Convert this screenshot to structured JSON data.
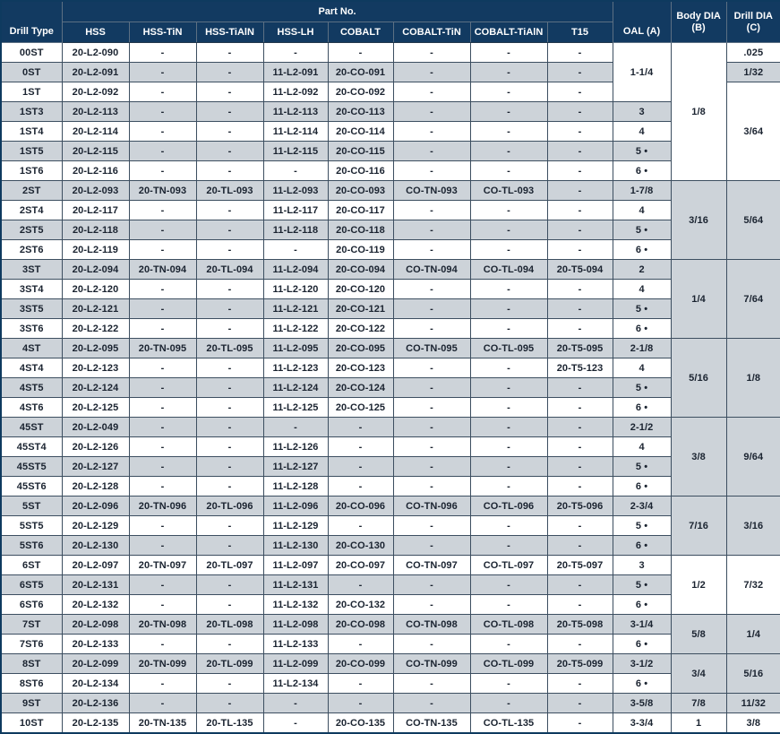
{
  "table": {
    "part_no_label": "Part No.",
    "drill_type_label": "Drill Type",
    "oal_label": "OAL (A)",
    "body_dia_label": "Body DIA (B)",
    "drill_dia_label": "Drill DIA (C)",
    "part_columns": [
      "HSS",
      "HSS-TiN",
      "HSS-TiAlN",
      "HSS-LH",
      "COBALT",
      "COBALT-TiN",
      "COBALT-TiAlN",
      "T15"
    ],
    "rows": [
      {
        "type": "00ST",
        "parts": [
          "20-L2-090",
          "-",
          "-",
          "-",
          "-",
          "-",
          "-",
          "-"
        ],
        "oal": {
          "t": "1-1/4",
          "rs": 3
        },
        "body": {
          "t": "1/8",
          "rs": 7
        },
        "drill": ".025"
      },
      {
        "type": "0ST",
        "parts": [
          "20-L2-091",
          "-",
          "-",
          "11-L2-091",
          "20-CO-091",
          "-",
          "-",
          "-"
        ],
        "oal": null,
        "body": null,
        "drill": "1/32"
      },
      {
        "type": "1ST",
        "parts": [
          "20-L2-092",
          "-",
          "-",
          "11-L2-092",
          "20-CO-092",
          "-",
          "-",
          "-"
        ],
        "oal": null,
        "body": null,
        "drill": {
          "t": "3/64",
          "rs": 5
        }
      },
      {
        "type": "1ST3",
        "parts": [
          "20-L2-113",
          "-",
          "-",
          "11-L2-113",
          "20-CO-113",
          "-",
          "-",
          "-"
        ],
        "oal": "3",
        "body": null,
        "drill": null
      },
      {
        "type": "1ST4",
        "parts": [
          "20-L2-114",
          "-",
          "-",
          "11-L2-114",
          "20-CO-114",
          "-",
          "-",
          "-"
        ],
        "oal": "4",
        "body": null,
        "drill": null
      },
      {
        "type": "1ST5",
        "parts": [
          "20-L2-115",
          "-",
          "-",
          "11-L2-115",
          "20-CO-115",
          "-",
          "-",
          "-"
        ],
        "oal": "5 •",
        "body": null,
        "drill": null
      },
      {
        "type": "1ST6",
        "parts": [
          "20-L2-116",
          "-",
          "-",
          "-",
          "20-CO-116",
          "-",
          "-",
          "-"
        ],
        "oal": "6 •",
        "body": null,
        "drill": null
      },
      {
        "type": "2ST",
        "parts": [
          "20-L2-093",
          "20-TN-093",
          "20-TL-093",
          "11-L2-093",
          "20-CO-093",
          "CO-TN-093",
          "CO-TL-093",
          "-"
        ],
        "oal": "1-7/8",
        "body": {
          "t": "3/16",
          "rs": 4
        },
        "drill": {
          "t": "5/64",
          "rs": 4
        }
      },
      {
        "type": "2ST4",
        "parts": [
          "20-L2-117",
          "-",
          "-",
          "11-L2-117",
          "20-CO-117",
          "-",
          "-",
          "-"
        ],
        "oal": "4",
        "body": null,
        "drill": null
      },
      {
        "type": "2ST5",
        "parts": [
          "20-L2-118",
          "-",
          "-",
          "11-L2-118",
          "20-CO-118",
          "-",
          "-",
          "-"
        ],
        "oal": "5 •",
        "body": null,
        "drill": null
      },
      {
        "type": "2ST6",
        "parts": [
          "20-L2-119",
          "-",
          "-",
          "-",
          "20-CO-119",
          "-",
          "-",
          "-"
        ],
        "oal": "6 •",
        "body": null,
        "drill": null
      },
      {
        "type": "3ST",
        "parts": [
          "20-L2-094",
          "20-TN-094",
          "20-TL-094",
          "11-L2-094",
          "20-CO-094",
          "CO-TN-094",
          "CO-TL-094",
          "20-T5-094"
        ],
        "oal": "2",
        "body": {
          "t": "1/4",
          "rs": 4
        },
        "drill": {
          "t": "7/64",
          "rs": 4
        }
      },
      {
        "type": "3ST4",
        "parts": [
          "20-L2-120",
          "-",
          "-",
          "11-L2-120",
          "20-CO-120",
          "-",
          "-",
          "-"
        ],
        "oal": "4",
        "body": null,
        "drill": null
      },
      {
        "type": "3ST5",
        "parts": [
          "20-L2-121",
          "-",
          "-",
          "11-L2-121",
          "20-CO-121",
          "-",
          "-",
          "-"
        ],
        "oal": "5 •",
        "body": null,
        "drill": null
      },
      {
        "type": "3ST6",
        "parts": [
          "20-L2-122",
          "-",
          "-",
          "11-L2-122",
          "20-CO-122",
          "-",
          "-",
          "-"
        ],
        "oal": "6 •",
        "body": null,
        "drill": null
      },
      {
        "type": "4ST",
        "parts": [
          "20-L2-095",
          "20-TN-095",
          "20-TL-095",
          "11-L2-095",
          "20-CO-095",
          "CO-TN-095",
          "CO-TL-095",
          "20-T5-095"
        ],
        "oal": "2-1/8",
        "body": {
          "t": "5/16",
          "rs": 4
        },
        "drill": {
          "t": "1/8",
          "rs": 4
        }
      },
      {
        "type": "4ST4",
        "parts": [
          "20-L2-123",
          "-",
          "-",
          "11-L2-123",
          "20-CO-123",
          "-",
          "-",
          "20-T5-123"
        ],
        "oal": "4",
        "body": null,
        "drill": null
      },
      {
        "type": "4ST5",
        "parts": [
          "20-L2-124",
          "-",
          "-",
          "11-L2-124",
          "20-CO-124",
          "-",
          "-",
          "-"
        ],
        "oal": "5 •",
        "body": null,
        "drill": null
      },
      {
        "type": "4ST6",
        "parts": [
          "20-L2-125",
          "-",
          "-",
          "11-L2-125",
          "20-CO-125",
          "-",
          "-",
          "-"
        ],
        "oal": "6 •",
        "body": null,
        "drill": null
      },
      {
        "type": "45ST",
        "parts": [
          "20-L2-049",
          "-",
          "-",
          "-",
          "-",
          "-",
          "-",
          "-"
        ],
        "oal": "2-1/2",
        "body": {
          "t": "3/8",
          "rs": 4
        },
        "drill": {
          "t": "9/64",
          "rs": 4
        }
      },
      {
        "type": "45ST4",
        "parts": [
          "20-L2-126",
          "-",
          "-",
          "11-L2-126",
          "-",
          "-",
          "-",
          "-"
        ],
        "oal": "4",
        "body": null,
        "drill": null
      },
      {
        "type": "45ST5",
        "parts": [
          "20-L2-127",
          "-",
          "-",
          "11-L2-127",
          "-",
          "-",
          "-",
          "-"
        ],
        "oal": "5 •",
        "body": null,
        "drill": null
      },
      {
        "type": "45ST6",
        "parts": [
          "20-L2-128",
          "-",
          "-",
          "11-L2-128",
          "-",
          "-",
          "-",
          "-"
        ],
        "oal": "6 •",
        "body": null,
        "drill": null
      },
      {
        "type": "5ST",
        "parts": [
          "20-L2-096",
          "20-TN-096",
          "20-TL-096",
          "11-L2-096",
          "20-CO-096",
          "CO-TN-096",
          "CO-TL-096",
          "20-T5-096"
        ],
        "oal": "2-3/4",
        "body": {
          "t": "7/16",
          "rs": 3
        },
        "drill": {
          "t": "3/16",
          "rs": 3
        }
      },
      {
        "type": "5ST5",
        "parts": [
          "20-L2-129",
          "-",
          "-",
          "11-L2-129",
          "-",
          "-",
          "-",
          "-"
        ],
        "oal": "5 •",
        "body": null,
        "drill": null
      },
      {
        "type": "5ST6",
        "parts": [
          "20-L2-130",
          "-",
          "-",
          "11-L2-130",
          "20-CO-130",
          "-",
          "-",
          "-"
        ],
        "oal": "6 •",
        "body": null,
        "drill": null
      },
      {
        "type": "6ST",
        "parts": [
          "20-L2-097",
          "20-TN-097",
          "20-TL-097",
          "11-L2-097",
          "20-CO-097",
          "CO-TN-097",
          "CO-TL-097",
          "20-T5-097"
        ],
        "oal": "3",
        "body": {
          "t": "1/2",
          "rs": 3
        },
        "drill": {
          "t": "7/32",
          "rs": 3
        }
      },
      {
        "type": "6ST5",
        "parts": [
          "20-L2-131",
          "-",
          "-",
          "11-L2-131",
          "-",
          "-",
          "-",
          "-"
        ],
        "oal": "5 •",
        "body": null,
        "drill": null
      },
      {
        "type": "6ST6",
        "parts": [
          "20-L2-132",
          "-",
          "-",
          "11-L2-132",
          "20-CO-132",
          "-",
          "-",
          "-"
        ],
        "oal": "6 •",
        "body": null,
        "drill": null
      },
      {
        "type": "7ST",
        "parts": [
          "20-L2-098",
          "20-TN-098",
          "20-TL-098",
          "11-L2-098",
          "20-CO-098",
          "CO-TN-098",
          "CO-TL-098",
          "20-T5-098"
        ],
        "oal": "3-1/4",
        "body": {
          "t": "5/8",
          "rs": 2
        },
        "drill": {
          "t": "1/4",
          "rs": 2
        }
      },
      {
        "type": "7ST6",
        "parts": [
          "20-L2-133",
          "-",
          "-",
          "11-L2-133",
          "-",
          "-",
          "-",
          "-"
        ],
        "oal": "6 •",
        "body": null,
        "drill": null
      },
      {
        "type": "8ST",
        "parts": [
          "20-L2-099",
          "20-TN-099",
          "20-TL-099",
          "11-L2-099",
          "20-CO-099",
          "CO-TN-099",
          "CO-TL-099",
          "20-T5-099"
        ],
        "oal": "3-1/2",
        "body": {
          "t": "3/4",
          "rs": 2
        },
        "drill": {
          "t": "5/16",
          "rs": 2
        }
      },
      {
        "type": "8ST6",
        "parts": [
          "20-L2-134",
          "-",
          "-",
          "11-L2-134",
          "-",
          "-",
          "-",
          "-"
        ],
        "oal": "6 •",
        "body": null,
        "drill": null
      },
      {
        "type": "9ST",
        "parts": [
          "20-L2-136",
          "-",
          "-",
          "-",
          "-",
          "-",
          "-",
          "-"
        ],
        "oal": "3-5/8",
        "body": "7/8",
        "drill": "11/32"
      },
      {
        "type": "10ST",
        "parts": [
          "20-L2-135",
          "20-TN-135",
          "20-TL-135",
          "-",
          "20-CO-135",
          "CO-TN-135",
          "CO-TL-135",
          "-"
        ],
        "oal": "3-3/4",
        "body": "1",
        "drill": "3/8"
      }
    ]
  },
  "colors": {
    "header_bg": "#123a61",
    "stripe_bg": "#cdd3d9",
    "row_bg": "#ffffff",
    "border": "#3c4e60",
    "text": "#1a2330",
    "header_text": "#ffffff"
  }
}
